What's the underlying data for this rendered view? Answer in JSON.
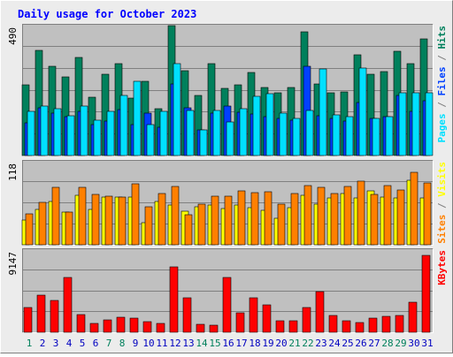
{
  "title": "Daily usage for October 2023",
  "colors": {
    "background": "#ececec",
    "plot_bg": "#c0c0c0",
    "frame_light": "#ffffff",
    "frame_dark": "#7f7f7f",
    "title": "#0000ff",
    "hits": "#00805c",
    "files": "#0040ff",
    "pages": "#00e0ff",
    "visits": "#ffff00",
    "sites": "#ff8000",
    "kbytes": "#ff0000",
    "weekend_label": "#00805c",
    "weekday_label": "#0000c0",
    "gridline": "#808080"
  },
  "chart_data": [
    {
      "type": "bar",
      "panel": "top",
      "max_label": "490",
      "ylim": [
        0,
        490
      ],
      "ylabel_parts": [
        {
          "text": "Pages",
          "color_key": "pages"
        },
        {
          "text": " / ",
          "color_key": "frame_dark"
        },
        {
          "text": "Files",
          "color_key": "files"
        },
        {
          "text": " / ",
          "color_key": "frame_dark"
        },
        {
          "text": "Hits",
          "color_key": "hits"
        }
      ],
      "series": [
        {
          "name": "Hits",
          "values": [
            265,
            395,
            335,
            295,
            370,
            220,
            305,
            345,
            218,
            280,
            178,
            490,
            320,
            228,
            345,
            252,
            265,
            312,
            255,
            238,
            258,
            465,
            270,
            237,
            240,
            380,
            305,
            318,
            393,
            345,
            440
          ]
        },
        {
          "name": "Files",
          "values": [
            122,
            180,
            160,
            145,
            165,
            117,
            130,
            172,
            118,
            160,
            108,
            270,
            180,
            95,
            160,
            188,
            162,
            158,
            145,
            140,
            135,
            335,
            150,
            140,
            130,
            200,
            140,
            145,
            225,
            165,
            205
          ]
        },
        {
          "name": "Pages",
          "values": [
            168,
            188,
            175,
            150,
            188,
            135,
            168,
            228,
            280,
            118,
            168,
            345,
            170,
            95,
            170,
            128,
            175,
            223,
            232,
            160,
            140,
            170,
            325,
            152,
            147,
            330,
            140,
            148,
            237,
            235,
            237
          ]
        }
      ]
    },
    {
      "type": "bar",
      "panel": "middle",
      "max_label": "118",
      "ylim": [
        0,
        118
      ],
      "ylabel_parts": [
        {
          "text": "Sites",
          "color_key": "sites"
        },
        {
          "text": " / ",
          "color_key": "frame_dark"
        },
        {
          "text": "Visits",
          "color_key": "visits"
        }
      ],
      "series": [
        {
          "name": "Visits",
          "values": [
            35,
            50,
            62,
            47,
            70,
            50,
            68,
            68,
            68,
            32,
            62,
            56,
            48,
            54,
            56,
            52,
            57,
            53,
            49,
            38,
            53,
            70,
            58,
            66,
            73,
            67,
            77,
            68,
            66,
            92,
            67
          ]
        },
        {
          "name": "Sites",
          "values": [
            44,
            60,
            82,
            47,
            82,
            72,
            69,
            68,
            86,
            54,
            73,
            83,
            43,
            58,
            69,
            69,
            76,
            74,
            75,
            58,
            73,
            84,
            81,
            73,
            83,
            90,
            72,
            84,
            78,
            103,
            88
          ]
        }
      ]
    },
    {
      "type": "bar",
      "panel": "bottom",
      "max_label": "9147",
      "ylim": [
        0,
        9147
      ],
      "ylabel_parts": [
        {
          "text": "KBytes",
          "color_key": "kbytes"
        }
      ],
      "series": [
        {
          "name": "KBytes",
          "values": [
            2750,
            4100,
            3500,
            6050,
            2000,
            940,
            1390,
            1640,
            1570,
            1150,
            950,
            7300,
            3800,
            840,
            800,
            6050,
            2200,
            3850,
            3000,
            1250,
            1300,
            2750,
            4500,
            1850,
            1250,
            1050,
            1550,
            1750,
            1900,
            3300,
            8600
          ]
        }
      ]
    }
  ],
  "days": [
    "1",
    "2",
    "3",
    "4",
    "5",
    "6",
    "7",
    "8",
    "9",
    "10",
    "11",
    "12",
    "13",
    "14",
    "15",
    "16",
    "17",
    "18",
    "19",
    "20",
    "21",
    "22",
    "23",
    "24",
    "25",
    "26",
    "27",
    "28",
    "29",
    "30",
    "31"
  ],
  "weekend_days": [
    "1",
    "7",
    "8",
    "14",
    "15",
    "21",
    "22",
    "28",
    "29"
  ]
}
